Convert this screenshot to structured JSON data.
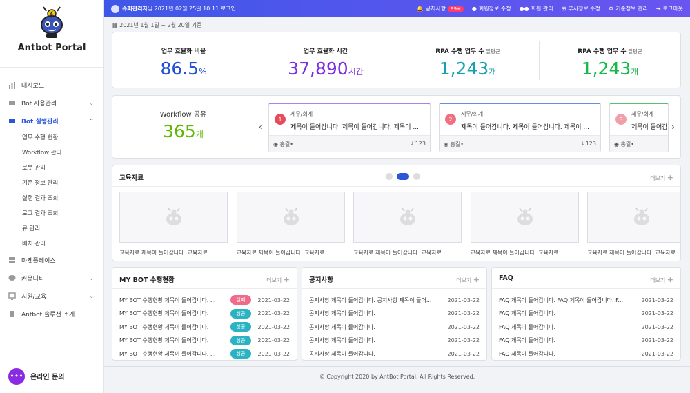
{
  "brand": "Antbot Portal",
  "nav": [
    {
      "label": "대시보드",
      "active": false
    },
    {
      "label": "Bot 사용관리",
      "active": false
    },
    {
      "label": "Bot 실행관리",
      "active": true
    }
  ],
  "sub_nav": [
    "업무 수행 현황",
    "Workflow 관리",
    "로봇 관리",
    "기준 정보 관리",
    "실행 결과 조회",
    "로그 결과 조회",
    "큐 관리",
    "배치 관리"
  ],
  "nav_bottom": [
    "마켓플레이스",
    "커뮤니티",
    "지원/교육",
    "Antbot 솔루션 소개"
  ],
  "online": "온라인 문의",
  "topbar": {
    "user_name": "슈퍼관리자",
    "user_suffix": " 님 2021년 02월 25일 10:11 로그인",
    "notice": "공지사항",
    "notice_badge": "99+",
    "menu": [
      "회원정보 수정",
      "회원 관리",
      "부서정보 수정",
      "기준정보 관리",
      "로그아웃"
    ]
  },
  "date_range": "2021년 1월 1일 ~ 2월 20일 기준",
  "stats": [
    {
      "label": "업무 효율화 비율",
      "sub": "",
      "value": "86.5",
      "unit": "%",
      "color": "#1f4fd8"
    },
    {
      "label": "업무 효율화 시간",
      "sub": "",
      "value": "37,890",
      "unit": "시간",
      "color": "#7b2fe0"
    },
    {
      "label": "RPA 수행 업무 수",
      "sub": " 일평균",
      "value": "1,243",
      "unit": "개",
      "color": "#1a9fb0"
    },
    {
      "label": "RPA 수행 업무 수",
      "sub": " 일평균",
      "value": "1,243",
      "unit": "개",
      "color": "#17b84a"
    }
  ],
  "workflow": {
    "title": "Workflow 공유",
    "value": "365",
    "unit": "개",
    "cards": [
      {
        "num": "1",
        "category": "세무/회계",
        "title": "제목이 들어갑니다. 제목이 들어갑니다. 제목이 ...",
        "author": "홍길•",
        "downloads": "123",
        "top": "#b080e8",
        "circle": "#e84b5a"
      },
      {
        "num": "2",
        "category": "세무/회계",
        "title": "제목이 들어갑니다. 제목이 들어갑니다. 제목이 ...",
        "author": "홍길•",
        "downloads": "123",
        "top": "#6a8ae8",
        "circle": "#f07080"
      },
      {
        "num": "3",
        "category": "세무/회계",
        "title": "제목이 들어갑니다. 제목이 들어갑니다. 제목이 ...",
        "author": "홍길•",
        "downloads": "",
        "top": "#5cc070",
        "circle": "#f0a0a8"
      }
    ]
  },
  "education": {
    "title": "교육자료",
    "more": "더보기",
    "items": [
      "교육자료 제목이 들어갑니다. 교육자료...",
      "교육자료 제목이 들어갑니다. 교육자료...",
      "교육자료 제목이 들어갑니다. 교육자료...",
      "교육자료 제목이 들어갑니다. 교육자료...",
      "교육자료 제목이 들어갑니다. 교육자료..."
    ]
  },
  "mybot": {
    "title": "MY BOT 수행현황",
    "more": "더보기",
    "rows": [
      {
        "t": "MY BOT 수행현황 제목이 들어갑니다. ...",
        "s": "실패",
        "c": "#f06a8a",
        "d": "2021-03-22"
      },
      {
        "t": "MY BOT 수행현황 제목이 들어갑니다.",
        "s": "성공",
        "c": "#2bb3c4",
        "d": "2021-03-22"
      },
      {
        "t": "MY BOT 수행현황 제목이 들어갑니다.",
        "s": "성공",
        "c": "#2bb3c4",
        "d": "2021-03-22"
      },
      {
        "t": "MY BOT 수행현황 제목이 들어갑니다.",
        "s": "성공",
        "c": "#2bb3c4",
        "d": "2021-03-22"
      },
      {
        "t": "MY BOT 수행현황 제목이 들어갑니다. ...",
        "s": "성공",
        "c": "#2bb3c4",
        "d": "2021-03-22"
      }
    ]
  },
  "notice": {
    "title": "공지사항",
    "more": "더보기",
    "rows": [
      {
        "t": "공지사항 제목이 들어갑니다. 공지사항 제목이 들어...",
        "d": "2021-03-22"
      },
      {
        "t": "공지사항 제목이 들어갑니다.",
        "d": "2021-03-22"
      },
      {
        "t": "공지사항 제목이 들어갑니다.",
        "d": "2021-03-22"
      },
      {
        "t": "공지사항 제목이 들어갑니다.",
        "d": "2021-03-22"
      },
      {
        "t": "공지사항 제목이 들어갑니다.",
        "d": "2021-03-22"
      }
    ]
  },
  "faq": {
    "title": "FAQ",
    "more": "더보기",
    "rows": [
      {
        "t": "FAQ 제목이 들어갑니다. FAQ 제목이 들어갑니다. F...",
        "d": "2021-03-22"
      },
      {
        "t": "FAQ 제목이 들어갑니다.",
        "d": "2021-03-22"
      },
      {
        "t": "FAQ 제목이 들어갑니다.",
        "d": "2021-03-22"
      },
      {
        "t": "FAQ 제목이 들어갑니다.",
        "d": "2021-03-22"
      },
      {
        "t": "FAQ 제목이 들어갑니다.",
        "d": "2021-03-22"
      }
    ]
  },
  "footer": "© Copyright 2020 by AntBot Portal. All Rights Reserved."
}
